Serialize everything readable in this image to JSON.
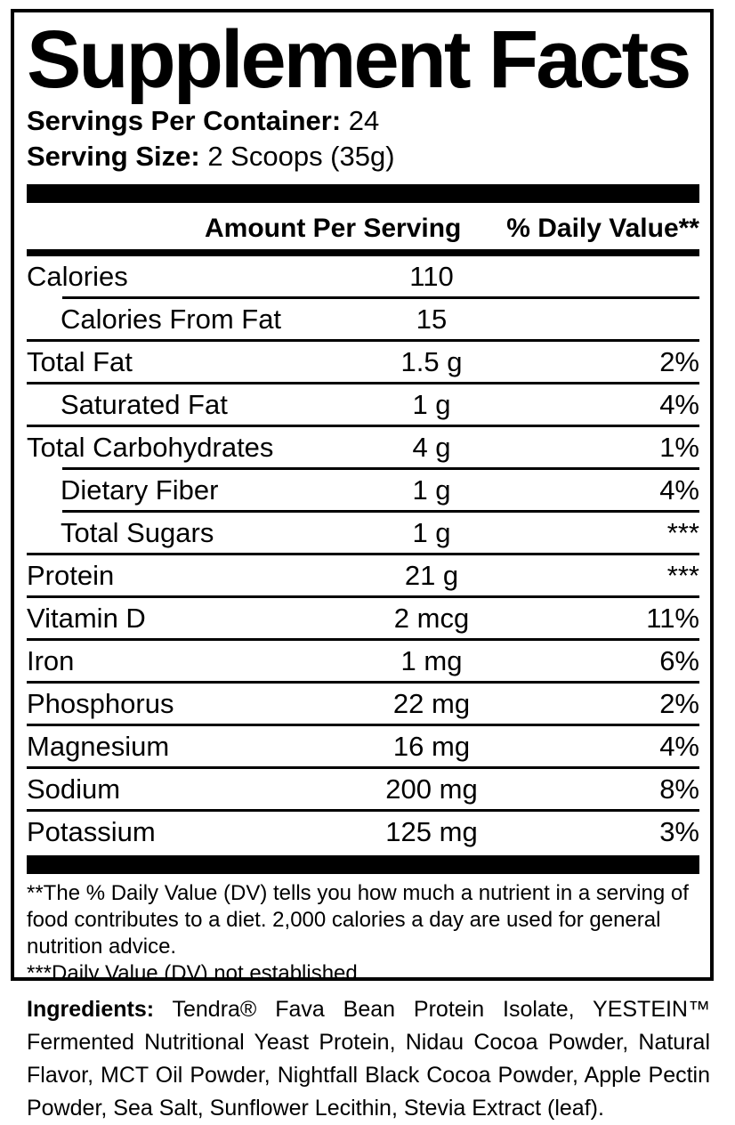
{
  "panel": {
    "title": "Supplement Facts",
    "servings_per_container": {
      "label": "Servings Per Container:",
      "value": "24"
    },
    "serving_size": {
      "label": "Serving Size:",
      "value": "2 Scoops (35g)"
    },
    "columns": {
      "amount": "Amount Per Serving",
      "daily_value": "% Daily Value**"
    },
    "rows": [
      {
        "name": "Calories",
        "amount": "110",
        "dv": "",
        "indent": false,
        "sep_after": "indent"
      },
      {
        "name": "Calories From Fat",
        "amount": "15",
        "dv": "",
        "indent": true,
        "sep_after": "full"
      },
      {
        "name": "Total Fat",
        "amount": "1.5 g",
        "dv": "2%",
        "indent": false,
        "sep_after": "full"
      },
      {
        "name": "Saturated Fat",
        "amount": "1 g",
        "dv": "4%",
        "indent": true,
        "sep_after": "full"
      },
      {
        "name": "Total Carbohydrates",
        "amount": "4 g",
        "dv": "1%",
        "indent": false,
        "sep_after": "indent"
      },
      {
        "name": "Dietary Fiber",
        "amount": "1 g",
        "dv": "4%",
        "indent": true,
        "sep_after": "indent"
      },
      {
        "name": "Total Sugars",
        "amount": "1 g",
        "dv": "***",
        "indent": true,
        "sep_after": "full"
      },
      {
        "name": "Protein",
        "amount": "21 g",
        "dv": "***",
        "indent": false,
        "sep_after": "full"
      },
      {
        "name": "Vitamin D",
        "amount": "2 mcg",
        "dv": "11%",
        "indent": false,
        "sep_after": "full"
      },
      {
        "name": "Iron",
        "amount": "1 mg",
        "dv": "6%",
        "indent": false,
        "sep_after": "full"
      },
      {
        "name": "Phosphorus",
        "amount": "22 mg",
        "dv": "2%",
        "indent": false,
        "sep_after": "full"
      },
      {
        "name": "Magnesium",
        "amount": "16 mg",
        "dv": "4%",
        "indent": false,
        "sep_after": "full"
      },
      {
        "name": "Sodium",
        "amount": "200 mg",
        "dv": "8%",
        "indent": false,
        "sep_after": "full"
      },
      {
        "name": "Potassium",
        "amount": "125 mg",
        "dv": "3%",
        "indent": false,
        "sep_after": "none"
      }
    ],
    "footnotes": [
      "**The % Daily Value (DV) tells you how much a nutrient in a serving of food contributes to a diet. 2,000 calories a day are used for general nutrition advice.",
      "***Daily Value (DV) not established."
    ]
  },
  "ingredients": {
    "label": "Ingredients:",
    "text": " Tendra® Fava Bean Protein Isolate, YESTEIN™ Fermented Nutritional Yeast Protein, Nidau Cocoa Powder, Natural Flavor, MCT Oil Powder, Nightfall Black Cocoa Powder, Apple Pectin Powder, Sea Salt, Sunflower Lecithin, Stevia Extract (leaf)."
  },
  "colors": {
    "ink": "#000000",
    "background": "#ffffff"
  }
}
